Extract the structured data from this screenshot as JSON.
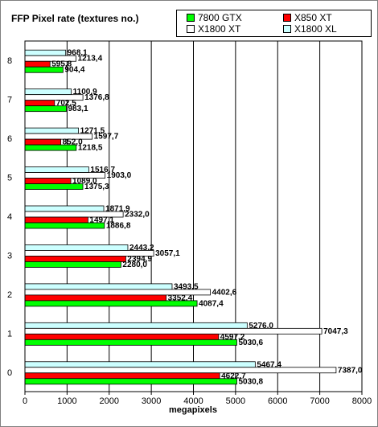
{
  "title": "FFP Pixel rate (textures no.)",
  "legend": [
    {
      "name": "7800 GTX",
      "color": "#00ff00"
    },
    {
      "name": "X850 XT",
      "color": "#ff0000"
    },
    {
      "name": "X1800 XT",
      "color": "#ffffff"
    },
    {
      "name": "X1800 XL",
      "color": "#ccffff"
    }
  ],
  "chart_data": {
    "type": "bar",
    "orientation": "horizontal",
    "title": "FFP Pixel rate (textures no.)",
    "xlabel": "megapixels",
    "ylabel": "",
    "xlim": [
      0,
      8000
    ],
    "xticks": [
      0,
      1000,
      2000,
      3000,
      4000,
      5000,
      6000,
      7000,
      8000
    ],
    "grid": true,
    "legend_position": "top-right",
    "categories": [
      "0",
      "1",
      "2",
      "3",
      "4",
      "5",
      "6",
      "7",
      "8"
    ],
    "series": [
      {
        "name": "7800 GTX",
        "color": "#00ff00",
        "values": [
          5030.8,
          5030.6,
          4087.4,
          2280.0,
          1886.8,
          1375.3,
          1218.5,
          983.1,
          904.4
        ]
      },
      {
        "name": "X850 XT",
        "color": "#ff0000",
        "values": [
          4622.7,
          4597.2,
          3352.4,
          2394.9,
          1497.1,
          1089.0,
          852.0,
          702.5,
          595.8
        ]
      },
      {
        "name": "X1800 XT",
        "color": "#ffffff",
        "values": [
          7387.0,
          7047.3,
          4402.6,
          3057.1,
          2332.0,
          1903.0,
          1597.7,
          1376.8,
          1213.4
        ]
      },
      {
        "name": "X1800 XL",
        "color": "#ccffff",
        "values": [
          5467.4,
          5276.0,
          3493.5,
          2443.2,
          1871.9,
          1516.7,
          1271.5,
          1100.9,
          968.1
        ]
      }
    ],
    "value_labels": [
      [
        "5030,8",
        "5030,6",
        "4087,4",
        "2280,0",
        "1886,8",
        "1375,3",
        "1218,5",
        "983,1",
        "904,4"
      ],
      [
        "4622,7",
        "4597,2",
        "3352,4",
        "2394,9",
        "1497,1",
        "1089,0",
        "852,0",
        "702,5",
        "595,8"
      ],
      [
        "7387,0",
        "7047,3",
        "4402,6",
        "3057,1",
        "2332,0",
        "1903,0",
        "1597,7",
        "1376,8",
        "1213,4"
      ],
      [
        "5467,4",
        "5276,0",
        "3493,5",
        "2443,2",
        "1871,9",
        "1516,7",
        "1271,5",
        "1100,9",
        "968,1"
      ]
    ]
  }
}
